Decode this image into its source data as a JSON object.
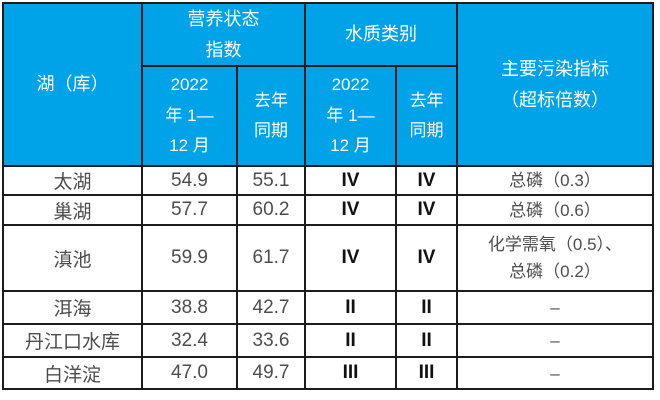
{
  "colors": {
    "header_background": "#00a2e8",
    "header_text": "#ffffff",
    "border": "#1c1c1c",
    "body_text": "#4d4d4d",
    "roman_numeral_text": "#111111",
    "page_background": "#ffffff"
  },
  "chart_data": {
    "type": "table",
    "column_groups": [
      {
        "label": "湖（库）",
        "span": 1,
        "merged_vertically": true
      },
      {
        "label": "营养状态指数",
        "span": 2
      },
      {
        "label": "水质类别",
        "span": 2
      },
      {
        "label": "主要污染指标（超标倍数）",
        "span": 1,
        "merged_vertically": true
      }
    ],
    "sub_columns": [
      "2022年1—12月",
      "去年同期",
      "2022年1—12月",
      "去年同期"
    ],
    "rows": [
      [
        "太湖",
        "54.9",
        "55.1",
        "IV",
        "IV",
        "总磷（0.3）"
      ],
      [
        "巢湖",
        "57.7",
        "60.2",
        "IV",
        "IV",
        "总磷（0.6）"
      ],
      [
        "滇池",
        "59.9",
        "61.7",
        "IV",
        "IV",
        "化学需氧（0.5）、总磷（0.2）"
      ],
      [
        "洱海",
        "38.8",
        "42.7",
        "II",
        "II",
        "–"
      ],
      [
        "丹江口水库",
        "32.4",
        "33.6",
        "II",
        "II",
        "–"
      ],
      [
        "白洋淀",
        "47.0",
        "49.7",
        "III",
        "III",
        "–"
      ]
    ]
  },
  "display": {
    "header": {
      "lake": "湖（库）",
      "nutrition_group": "营养状态\n指数",
      "quality_group": "水质类别",
      "pollution_header": "主要污染指标\n（超标倍数）",
      "period_current": "2022\n年 1—\n12 月",
      "period_last": "去年\n同期"
    },
    "rows": [
      {
        "name": "太湖",
        "n2022": "54.9",
        "nlast": "55.1",
        "q2022": "IV",
        "qlast": "IV",
        "pollution": "总磷（0.3）"
      },
      {
        "name": "巢湖",
        "n2022": "57.7",
        "nlast": "60.2",
        "q2022": "IV",
        "qlast": "IV",
        "pollution": "总磷（0.6）"
      },
      {
        "name": "滇池",
        "n2022": "59.9",
        "nlast": "61.7",
        "q2022": "IV",
        "qlast": "IV",
        "pollution": "化学需氧（0.5）、\n总磷（0.2）"
      },
      {
        "name": "洱海",
        "n2022": "38.8",
        "nlast": "42.7",
        "q2022": "II",
        "qlast": "II",
        "pollution": "–"
      },
      {
        "name": "丹江口水库",
        "n2022": "32.4",
        "nlast": "33.6",
        "q2022": "II",
        "qlast": "II",
        "pollution": "–"
      },
      {
        "name": "白洋淀",
        "n2022": "47.0",
        "nlast": "49.7",
        "q2022": "III",
        "qlast": "III",
        "pollution": "–"
      }
    ]
  }
}
